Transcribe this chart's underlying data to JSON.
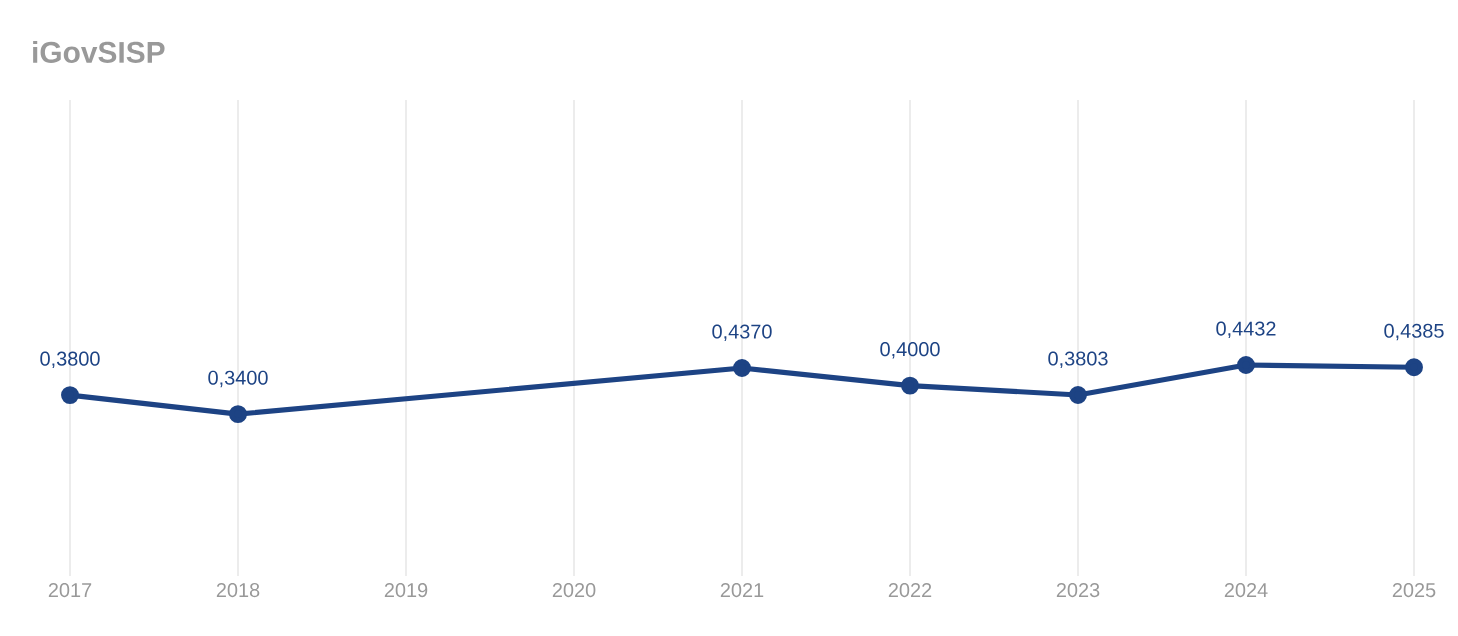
{
  "chart_data": {
    "type": "line",
    "title": "iGovSISP",
    "x": [
      2017,
      2018,
      2021,
      2022,
      2023,
      2024,
      2025
    ],
    "values": [
      0.38,
      0.34,
      0.437,
      0.4,
      0.3803,
      0.4432,
      0.4385
    ],
    "value_labels": [
      "0,3800",
      "0,3400",
      "0,4370",
      "0,4000",
      "0,3803",
      "0,4432",
      "0,4385"
    ],
    "color": "#1d4384",
    "xlim": [
      2017,
      2025
    ],
    "xticks": [
      2017,
      2018,
      2019,
      2020,
      2021,
      2022,
      2023,
      2024,
      2025
    ],
    "ylim": [
      0,
      1
    ],
    "tick_labels": "x",
    "grid": "x",
    "marker": "circle",
    "line_style": "solid"
  }
}
